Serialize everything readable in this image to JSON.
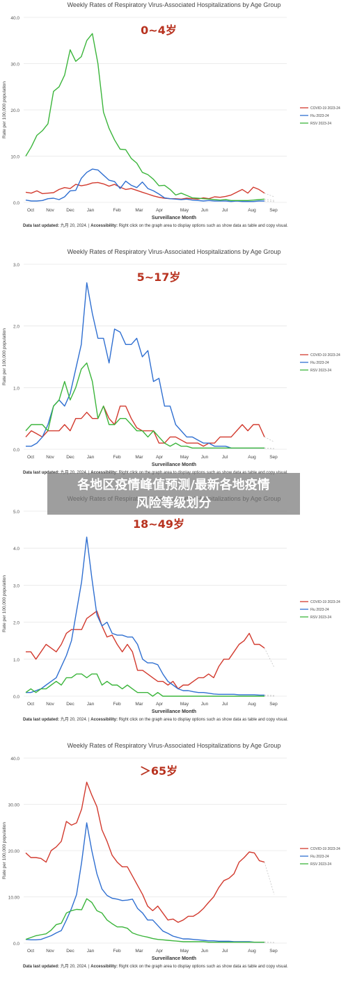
{
  "banner": {
    "line1": "各地区疫情峰值预测/最新各地疫情",
    "line2": "风险等级划分"
  },
  "colors": {
    "covid": "#d23a2e",
    "flu": "#2f6fd1",
    "rsv": "#3bb53b",
    "age_label": "#b8321f",
    "grid": "#e6e6e6"
  },
  "chart_data": [
    {
      "type": "line",
      "title": "Weekly Rates of Respiratory Virus-Associated Hospitalizations by Age Group",
      "age_label": "0~4岁",
      "ylabel": "Rate per 100,000 population",
      "xlabel": "Surveillance Month",
      "ylim": [
        0,
        40
      ],
      "yticks": [
        "0.0",
        "10.0",
        "20.0",
        "30.0",
        "40.0"
      ],
      "months": [
        "Oct",
        "Nov",
        "Dec",
        "Jan",
        "Feb",
        "Mar",
        "Apr",
        "May",
        "Jun",
        "Jul",
        "Aug",
        "Sep"
      ],
      "footer": {
        "updated_label": "Data last updated:",
        "updated_value": "九月 20, 2024.",
        "sep": "|",
        "access_label": "Accessibility:",
        "access_text": "Right click on the graph area to display options such as show data as table and copy visual."
      },
      "legend": [
        "COVID-19 2023-24",
        "Flu 2023-24",
        "RSV 2023-24"
      ],
      "series": [
        {
          "name": "COVID-19 2023-24",
          "values": [
            2.2,
            2.0,
            2.5,
            1.9,
            2.0,
            2.1,
            2.8,
            3.2,
            3.0,
            3.9,
            3.6,
            3.8,
            4.2,
            4.3,
            4.0,
            3.5,
            3.9,
            3.3,
            2.8,
            3.0,
            2.6,
            2.2,
            1.8,
            1.4,
            1.1,
            0.9,
            0.8,
            0.8,
            0.7,
            0.9,
            0.8,
            0.7,
            1.0,
            0.8,
            1.2,
            1.1,
            1.3,
            1.6,
            2.2,
            2.8,
            2.0,
            3.3,
            2.8,
            2.0
          ]
        },
        {
          "name": "Flu 2023-24",
          "values": [
            0.5,
            0.3,
            0.3,
            0.4,
            0.8,
            0.9,
            0.6,
            1.2,
            2.5,
            2.6,
            5.2,
            6.5,
            7.2,
            7.0,
            5.9,
            4.8,
            4.5,
            3.0,
            4.6,
            3.7,
            3.2,
            4.4,
            3.0,
            2.5,
            1.8,
            1.0,
            0.8,
            0.7,
            0.6,
            0.7,
            0.5,
            0.4,
            0.3,
            0.4,
            0.3,
            0.3,
            0.3,
            0.2,
            0.3,
            0.2,
            0.2,
            0.2,
            0.3,
            0.3
          ]
        },
        {
          "name": "RSV 2023-24",
          "values": [
            10.0,
            12.0,
            14.5,
            15.5,
            17.0,
            24.0,
            25.0,
            27.5,
            33.0,
            30.5,
            31.5,
            35.0,
            36.5,
            30.0,
            19.5,
            16.0,
            13.5,
            11.5,
            11.4,
            9.5,
            8.5,
            6.5,
            6.0,
            5.0,
            3.6,
            3.7,
            2.8,
            1.6,
            2.0,
            1.5,
            1.0,
            0.9,
            0.8,
            0.7,
            0.6,
            0.5,
            0.6,
            0.4,
            0.4,
            0.4,
            0.4,
            0.5,
            0.6,
            0.7
          ]
        }
      ]
    },
    {
      "type": "line",
      "title": "Weekly Rates of Respiratory Virus-Associated Hospitalizations by Age Group",
      "age_label": "5~17岁",
      "ylabel": "Rate per 100,000 population",
      "xlabel": "Surveillance Month",
      "ylim": [
        0,
        3
      ],
      "yticks": [
        "0.0",
        "1.0",
        "2.0",
        "3.0"
      ],
      "months": [
        "Oct",
        "Nov",
        "Dec",
        "Jan",
        "Feb",
        "Mar",
        "Apr",
        "May",
        "Jun",
        "Jul",
        "Aug",
        "Sep"
      ],
      "footer": {
        "updated_label": "Data last updated:",
        "updated_value": "九月 20, 2024.",
        "sep": "|",
        "access_label": "Accessibility:",
        "access_text": "Right click on the graph area to display options such as show data as table and copy visual."
      },
      "legend": [
        "COVID-19 2023-24",
        "Flu 2023-24",
        "RSV 2023-24"
      ],
      "series": [
        {
          "name": "COVID-19 2023-24",
          "values": [
            0.2,
            0.3,
            0.25,
            0.2,
            0.3,
            0.3,
            0.3,
            0.4,
            0.3,
            0.5,
            0.5,
            0.6,
            0.5,
            0.5,
            0.7,
            0.5,
            0.4,
            0.7,
            0.7,
            0.5,
            0.35,
            0.3,
            0.3,
            0.3,
            0.1,
            0.1,
            0.2,
            0.2,
            0.15,
            0.1,
            0.1,
            0.1,
            0.05,
            0.1,
            0.1,
            0.2,
            0.2,
            0.2,
            0.3,
            0.4,
            0.3,
            0.4,
            0.4,
            0.2
          ]
        },
        {
          "name": "Flu 2023-24",
          "values": [
            0.05,
            0.05,
            0.1,
            0.2,
            0.4,
            0.7,
            0.8,
            0.7,
            0.9,
            1.3,
            1.7,
            2.7,
            2.2,
            1.8,
            1.8,
            1.4,
            1.95,
            1.9,
            1.7,
            1.7,
            1.8,
            1.5,
            1.6,
            1.1,
            1.15,
            0.7,
            0.7,
            0.4,
            0.3,
            0.2,
            0.2,
            0.15,
            0.1,
            0.1,
            0.05,
            0.05,
            0.05,
            0.02,
            0.02,
            0.02,
            0.02,
            0.02,
            0.02,
            0.02
          ]
        },
        {
          "name": "RSV 2023-24",
          "values": [
            0.3,
            0.4,
            0.4,
            0.4,
            0.3,
            0.7,
            0.8,
            1.1,
            0.8,
            1.0,
            1.3,
            1.4,
            1.1,
            0.5,
            0.7,
            0.4,
            0.4,
            0.5,
            0.5,
            0.4,
            0.3,
            0.3,
            0.2,
            0.3,
            0.2,
            0.1,
            0.05,
            0.1,
            0.05,
            0.05,
            0.02,
            0.02,
            0.02,
            0.02,
            0.02,
            0.02,
            0.02,
            0.02,
            0.02,
            0.02,
            0.02,
            0.02,
            0.02,
            0.02
          ]
        }
      ]
    },
    {
      "type": "line",
      "title": "Weekly Rates of Respiratory Virus-Associated Hospitalizations by Age Group",
      "age_label": "18~49岁",
      "ylabel": "Rate per 100,000 population",
      "xlabel": "Surveillance Month",
      "ylim": [
        0,
        5
      ],
      "yticks": [
        "0.0",
        "1.0",
        "2.0",
        "3.0",
        "4.0",
        "5.0"
      ],
      "months": [
        "Oct",
        "Nov",
        "Dec",
        "Jan",
        "Feb",
        "Mar",
        "Apr",
        "May",
        "Jun",
        "Jul",
        "Aug",
        "Sep"
      ],
      "footer": {
        "updated_label": "Data last updated:",
        "updated_value": "九月 20, 2024.",
        "sep": "|",
        "access_label": "Accessibility:",
        "access_text": "Right click on the graph area to display options such as show data as table and copy visual."
      },
      "legend": [
        "COVID-19 2023-24",
        "Flu 2023-24",
        "RSV 2023-24"
      ],
      "series": [
        {
          "name": "COVID-19 2023-24",
          "values": [
            1.2,
            1.2,
            1.0,
            1.2,
            1.4,
            1.3,
            1.2,
            1.4,
            1.7,
            1.8,
            1.8,
            1.8,
            2.1,
            2.2,
            2.3,
            1.9,
            1.6,
            1.65,
            1.4,
            1.2,
            1.4,
            1.2,
            0.7,
            0.7,
            0.6,
            0.5,
            0.4,
            0.4,
            0.3,
            0.4,
            0.2,
            0.3,
            0.3,
            0.4,
            0.5,
            0.5,
            0.6,
            0.5,
            0.8,
            1.0,
            1.0,
            1.2,
            1.4,
            1.5,
            1.7,
            1.4,
            1.4,
            1.3
          ]
        },
        {
          "name": "Flu 2023-24",
          "values": [
            0.1,
            0.1,
            0.15,
            0.2,
            0.3,
            0.4,
            0.5,
            0.8,
            1.1,
            1.5,
            2.3,
            3.1,
            4.3,
            3.2,
            2.2,
            1.9,
            2.0,
            1.7,
            1.65,
            1.65,
            1.6,
            1.6,
            1.4,
            1.0,
            0.9,
            0.9,
            0.85,
            0.6,
            0.4,
            0.3,
            0.2,
            0.15,
            0.15,
            0.12,
            0.1,
            0.1,
            0.08,
            0.06,
            0.05,
            0.05,
            0.05,
            0.05,
            0.04,
            0.04,
            0.04,
            0.04,
            0.03,
            0.03
          ]
        },
        {
          "name": "RSV 2023-24",
          "values": [
            0.1,
            0.2,
            0.1,
            0.2,
            0.2,
            0.3,
            0.4,
            0.3,
            0.5,
            0.5,
            0.6,
            0.6,
            0.5,
            0.6,
            0.6,
            0.3,
            0.4,
            0.3,
            0.3,
            0.2,
            0.3,
            0.2,
            0.1,
            0.1,
            0.1,
            0.0,
            0.1,
            0.0,
            0.0,
            0.0,
            0.0,
            0.0,
            0.0,
            0.0,
            0.0,
            0.0,
            0.0,
            0.0,
            0.0,
            0.0,
            0.0,
            0.0,
            0.0,
            0.0,
            0.0,
            0.0,
            0.0,
            0.0
          ]
        }
      ]
    },
    {
      "type": "line",
      "title": "Weekly Rates of Respiratory Virus-Associated Hospitalizations by Age Group",
      "age_label": "＞65岁",
      "ylabel": "Rate per 100,000 population",
      "xlabel": "Surveillance Month",
      "ylim": [
        0,
        40
      ],
      "yticks": [
        "0.0",
        "10.00",
        "20.00",
        "30.00",
        "40.0"
      ],
      "months": [
        "Oct",
        "Nov",
        "Dec",
        "Jan",
        "Feb",
        "Mar",
        "Apr",
        "May",
        "Jun",
        "Jul",
        "Aug",
        "Sep"
      ],
      "footer": {
        "updated_label": "Data last updated:",
        "updated_value": "九月 20, 2024.",
        "sep": "|",
        "access_label": "Accessibility:",
        "access_text": "Right click on the graph area to display options such as show data as table and copy visual."
      },
      "legend": [
        "COVID-19 2023-24",
        "Flu 2023-24",
        "RSV 2023-24"
      ],
      "series": [
        {
          "name": "COVID-19 2023-24",
          "values": [
            19.5,
            18.5,
            18.5,
            18.3,
            17.5,
            20.0,
            20.8,
            22.0,
            26.3,
            25.5,
            26.0,
            29.0,
            34.8,
            32.0,
            29.5,
            24.5,
            22.0,
            19.0,
            17.5,
            16.5,
            16.5,
            14.5,
            12.5,
            10.5,
            8.0,
            7.0,
            8.0,
            6.5,
            5.0,
            5.2,
            4.5,
            5.0,
            5.8,
            5.8,
            6.5,
            7.5,
            8.8,
            10.0,
            12.0,
            13.5,
            14.0,
            15.0,
            17.5,
            18.5,
            19.7,
            19.5,
            17.8,
            17.5
          ]
        },
        {
          "name": "Flu 2023-24",
          "values": [
            0.8,
            0.7,
            0.7,
            0.8,
            1.2,
            1.6,
            2.2,
            2.7,
            5.0,
            7.5,
            10.5,
            17.5,
            26.0,
            20.0,
            15.0,
            11.7,
            10.3,
            9.7,
            9.5,
            9.2,
            9.3,
            9.5,
            7.5,
            6.5,
            5.0,
            5.0,
            3.8,
            2.6,
            2.1,
            1.5,
            1.2,
            0.9,
            0.9,
            0.8,
            0.7,
            0.6,
            0.5,
            0.5,
            0.4,
            0.4,
            0.4,
            0.3,
            0.3,
            0.3,
            0.3,
            0.2,
            0.2,
            0.2
          ]
        },
        {
          "name": "RSV 2023-24",
          "values": [
            0.8,
            1.2,
            1.6,
            1.8,
            2.0,
            2.8,
            4.0,
            4.3,
            6.5,
            7.0,
            7.3,
            7.2,
            9.6,
            8.8,
            7.0,
            6.5,
            5.0,
            4.2,
            3.5,
            3.5,
            3.2,
            2.2,
            1.8,
            1.5,
            1.3,
            1.0,
            0.8,
            0.7,
            0.6,
            0.5,
            0.4,
            0.3,
            0.3,
            0.3,
            0.3,
            0.3,
            0.2,
            0.2,
            0.2,
            0.2,
            0.2,
            0.2,
            0.2,
            0.2,
            0.2,
            0.2,
            0.2,
            0.2
          ]
        }
      ]
    }
  ]
}
